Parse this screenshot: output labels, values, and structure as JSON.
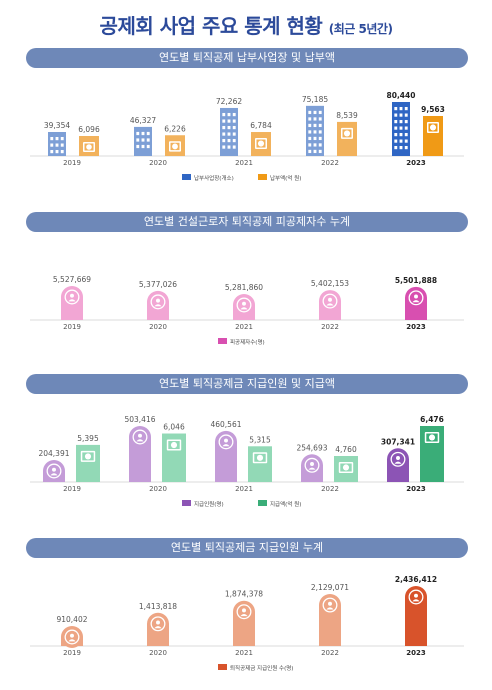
{
  "page": {
    "title": "공제회 사업 주요 통계 현황",
    "title_suffix": "(최근 5년간)"
  },
  "colors": {
    "banner": "#6e88b8",
    "blue": "#7d9fd6",
    "blue_hl": "#2f66c4",
    "orange": "#f2b25c",
    "orange_hl": "#f09a16",
    "pink": "#f2a6d4",
    "pink_hl": "#d84fb0",
    "purple": "#c49cd8",
    "purple_hl": "#8c54b5",
    "green": "#92d9b6",
    "green_hl": "#3aad78",
    "salmon": "#eda584",
    "salmon_hl": "#d8532b"
  },
  "chart_data": [
    {
      "type": "bar",
      "title": "연도별 퇴직공제 납부사업장 및 납부액",
      "categories": [
        "2019",
        "2020",
        "2021",
        "2022",
        "2023"
      ],
      "series": [
        {
          "name": "납부사업장(개소)",
          "values": [
            39354,
            46327,
            72262,
            75185,
            80440
          ],
          "labels": [
            "39,354",
            "46,327",
            "72,262",
            "75,185",
            "80,440"
          ],
          "icon": "building-icon"
        },
        {
          "name": "납부액(억 원)",
          "values": [
            6096,
            6226,
            6784,
            8539,
            9563
          ],
          "labels": [
            "6,096",
            "6,226",
            "6,784",
            "8,539",
            "9,563"
          ],
          "icon": "money-icon"
        }
      ],
      "highlight": "2023",
      "legend_position": "bottom-center"
    },
    {
      "type": "bar",
      "title": "연도별 건설근로자 퇴직공제 피공제자수 누계",
      "categories": [
        "2019",
        "2020",
        "2021",
        "2022",
        "2023"
      ],
      "series": [
        {
          "name": "피공제자수(명)",
          "values": [
            5527669,
            5377026,
            5281860,
            5402153,
            5501888
          ],
          "labels": [
            "5,527,669",
            "5,377,026",
            "5,281,860",
            "5,402,153",
            "5,501,888"
          ],
          "icon": "person-icon"
        }
      ],
      "highlight": "2023",
      "legend_position": "bottom-center"
    },
    {
      "type": "bar",
      "title": "연도별 퇴직공제금 지급인원 및 지급액",
      "categories": [
        "2019",
        "2020",
        "2021",
        "2022",
        "2023"
      ],
      "series": [
        {
          "name": "지급인원(명)",
          "values": [
            204391,
            503416,
            460561,
            254693,
            307341
          ],
          "labels": [
            "204,391",
            "503,416",
            "460,561",
            "254,693",
            "307,341"
          ],
          "icon": "person-icon"
        },
        {
          "name": "지급액(억 원)",
          "values": [
            5395,
            6046,
            5315,
            4760,
            6476
          ],
          "labels": [
            "5,395",
            "6,046",
            "5,315",
            "4,760",
            "6,476"
          ],
          "icon": "money-icon"
        }
      ],
      "highlight": "2023",
      "legend_position": "bottom-center"
    },
    {
      "type": "bar",
      "title": "연도별 퇴직공제금 지급인원 누계",
      "categories": [
        "2019",
        "2020",
        "2021",
        "2022",
        "2023"
      ],
      "series": [
        {
          "name": "퇴직공제금 지급인원 수(명)",
          "values": [
            910402,
            1413818,
            1874378,
            2129071,
            2436412
          ],
          "labels": [
            "910,402",
            "1,413,818",
            "1,874,378",
            "2,129,071",
            "2,436,412"
          ],
          "icon": "person-icon"
        }
      ],
      "highlight": "2023",
      "legend_position": "bottom-center"
    }
  ]
}
